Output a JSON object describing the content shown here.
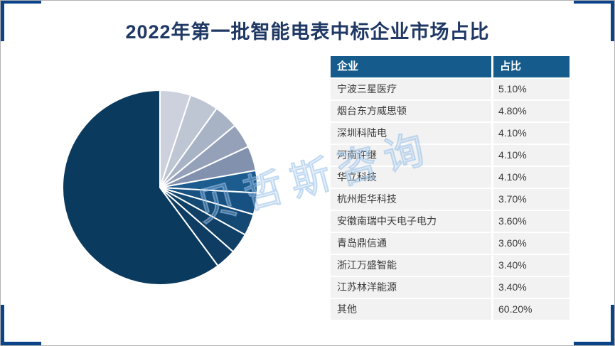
{
  "title": "2022年第一批智能电表中标企业市场占比",
  "watermark": "贝哲斯咨询",
  "table": {
    "headers": [
      "企业",
      "占比"
    ],
    "rows": [
      [
        "宁波三星医疗",
        "5.10%"
      ],
      [
        "烟台东方威思顿",
        "4.80%"
      ],
      [
        "深圳科陆电",
        "4.10%"
      ],
      [
        "河南许继",
        "4.10%"
      ],
      [
        "华立科技",
        "4.10%"
      ],
      [
        "杭州炬华科技",
        "3.70%"
      ],
      [
        "安徽南瑞中天电子电力",
        "3.60%"
      ],
      [
        "青岛鼎信通",
        "3.60%"
      ],
      [
        "浙江万盛智能",
        "3.40%"
      ],
      [
        "江苏林洋能源",
        "3.40%"
      ],
      [
        "其他",
        "60.20%"
      ]
    ]
  },
  "chart_data": {
    "type": "pie",
    "title": "2022年第一批智能电表中标企业市场占比",
    "labels": [
      "宁波三星医疗",
      "烟台东方威思顿",
      "深圳科陆电",
      "河南许继",
      "华立科技",
      "杭州炬华科技",
      "安徽南瑞中天电子电力",
      "青岛鼎信通",
      "浙江万盛智能",
      "江苏林洋能源",
      "其他"
    ],
    "values": [
      5.1,
      4.8,
      4.1,
      4.1,
      4.1,
      3.7,
      3.6,
      3.6,
      3.4,
      3.4,
      60.2
    ],
    "unit": "%",
    "start_angle_deg": 0,
    "direction": "clockwise",
    "legend_position": "none",
    "slice_colors": [
      "#ccd1dd",
      "#bec5d3",
      "#a9b3c6",
      "#94a1b9",
      "#8292ae",
      "#1d5c8e",
      "#175181",
      "#144973",
      "#114066",
      "#0f3c62",
      "#0a3a5d"
    ],
    "slice_stroke": "#ffffff"
  },
  "colors": {
    "title_text": "#1f3864",
    "table_header_bg": "#155c8c",
    "table_header_text": "#ffffff",
    "table_row_bg": "#f2f2f2",
    "table_row_text": "#3a3a3a",
    "corner_bracket": "#0a4389",
    "page_border": "#b3b3b3",
    "watermark_color": "#aecdea"
  }
}
